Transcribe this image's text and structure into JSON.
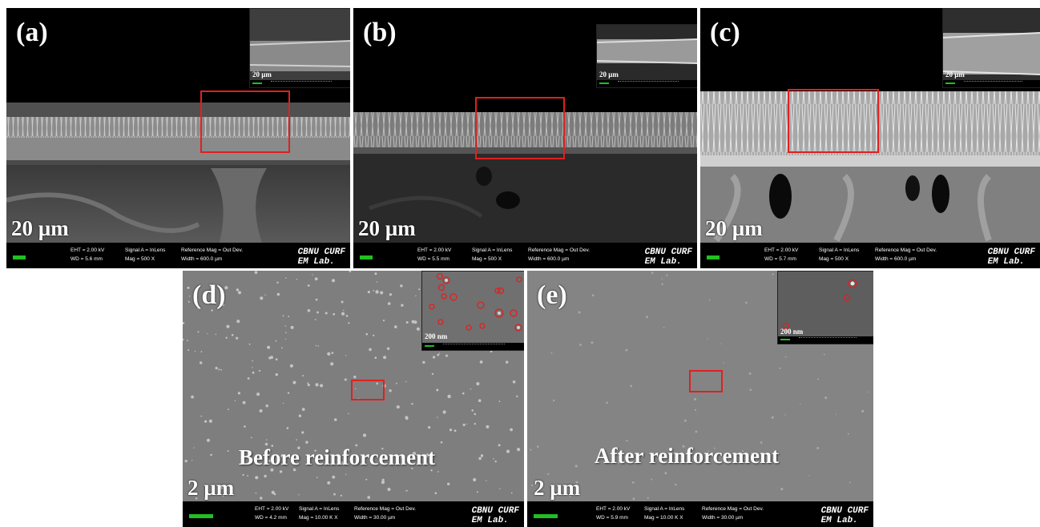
{
  "panels": {
    "a": {
      "label": "(a)",
      "scale": "20 µm",
      "inset_scale": "20 µm",
      "info": {
        "eht": "EHT = 2.00 kV",
        "wd": "WD = 5.6 mm",
        "signal": "Signal A = InLens",
        "mag": "Mag = 500 X",
        "ref": "Reference Mag = Out Dev.",
        "width": "Width = 600.0 µm"
      }
    },
    "b": {
      "label": "(b)",
      "scale": "20 µm",
      "inset_scale": "20 µm",
      "info": {
        "eht": "EHT = 2.00 kV",
        "wd": "WD = 5.5 mm",
        "signal": "Signal A = InLens",
        "mag": "Mag = 500 X",
        "ref": "Reference Mag = Out Dev.",
        "width": "Width = 600.0 µm"
      }
    },
    "c": {
      "label": "(c)",
      "scale": "20 µm",
      "inset_scale": "20 µm",
      "info": {
        "eht": "EHT = 2.00 kV",
        "wd": "WD = 5.7 mm",
        "signal": "Signal A = InLens",
        "mag": "Mag = 500 X",
        "ref": "Reference Mag = Out Dev.",
        "width": "Width = 600.0 µm"
      }
    },
    "d": {
      "label": "(d)",
      "scale": "2 µm",
      "inset_scale": "200 nm",
      "caption": "Before reinforcement",
      "info": {
        "eht": "EHT = 2.00 kV",
        "wd": "WD = 4.2 mm",
        "signal": "Signal A = InLens",
        "mag": "Mag = 10.00 K X",
        "ref": "Reference Mag = Out Dev.",
        "width": "Width = 30.00 µm"
      }
    },
    "e": {
      "label": "(e)",
      "scale": "2 µm",
      "inset_scale": "200 nm",
      "caption": "After reinforcement",
      "info": {
        "eht": "EHT = 2.00 kV",
        "wd": "WD = 5.9 mm",
        "signal": "Signal A = InLens",
        "mag": "Mag = 10.00 K X",
        "ref": "Reference Mag = Out Dev.",
        "width": "Width = 30.00 µm"
      }
    }
  },
  "logo_line1": "CBNU CURF",
  "logo_line2": "EM Lab.",
  "colors": {
    "highlight": "#e02020",
    "scalebar_green": "#20c020"
  }
}
